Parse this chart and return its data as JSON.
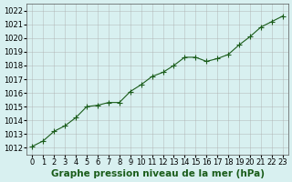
{
  "x": [
    0,
    1,
    2,
    3,
    4,
    5,
    6,
    7,
    8,
    9,
    10,
    11,
    12,
    13,
    14,
    15,
    16,
    17,
    18,
    19,
    20,
    21,
    22,
    23
  ],
  "y": [
    1012.1,
    1012.5,
    1013.2,
    1013.6,
    1014.2,
    1015.0,
    1015.1,
    1015.3,
    1015.3,
    1016.1,
    1016.6,
    1017.2,
    1017.5,
    1018.0,
    1018.6,
    1018.6,
    1018.3,
    1018.5,
    1018.8,
    1019.5,
    1020.1,
    1020.8,
    1021.2,
    1021.6
  ],
  "line_color": "#1a5c1a",
  "marker": "+",
  "bg_color": "#d8f0f0",
  "grid_color": "#aaaaaa",
  "xlabel": "Graphe pression niveau de la mer (hPa)",
  "ylim": [
    1011.5,
    1022.5
  ],
  "yticks": [
    1012,
    1013,
    1014,
    1015,
    1016,
    1017,
    1018,
    1019,
    1020,
    1021,
    1022
  ],
  "xticks": [
    0,
    1,
    2,
    3,
    4,
    5,
    6,
    7,
    8,
    9,
    10,
    11,
    12,
    13,
    14,
    15,
    16,
    17,
    18,
    19,
    20,
    21,
    22,
    23
  ],
  "title_color": "#1a5c1a",
  "xlabel_fontsize": 7.5,
  "xlabel_fontweight": "bold",
  "tick_fontsize": 6,
  "axis_bg": "#d8f0f0"
}
